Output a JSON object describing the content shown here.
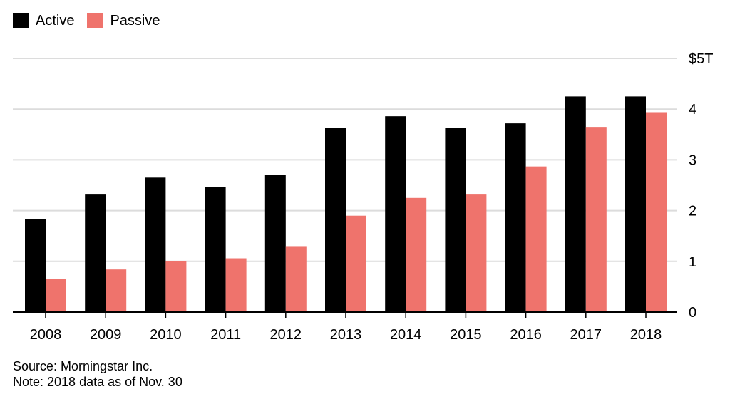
{
  "chart_data": {
    "type": "bar",
    "categories": [
      "2008",
      "2009",
      "2010",
      "2011",
      "2012",
      "2013",
      "2014",
      "2015",
      "2016",
      "2017",
      "2018"
    ],
    "series": [
      {
        "name": "Active",
        "color": "#000000",
        "values": [
          1.83,
          2.33,
          2.65,
          2.47,
          2.71,
          3.63,
          3.86,
          3.63,
          3.72,
          4.25,
          4.25
        ]
      },
      {
        "name": "Passive",
        "color": "#ef736c",
        "values": [
          0.66,
          0.84,
          1.01,
          1.06,
          1.3,
          1.9,
          2.25,
          2.33,
          2.87,
          3.65,
          3.94
        ]
      }
    ],
    "yticks": [
      0,
      1,
      2,
      3,
      4,
      5
    ],
    "ytick_labels": [
      "0",
      "1",
      "2",
      "3",
      "4",
      "$5T"
    ],
    "ylim": [
      0,
      5
    ],
    "y_axis_position": "right",
    "grid": true,
    "legend_position": "top-left"
  },
  "footer": {
    "source": "Source: Morningstar Inc.",
    "note": "Note: 2018 data as of Nov. 30"
  }
}
